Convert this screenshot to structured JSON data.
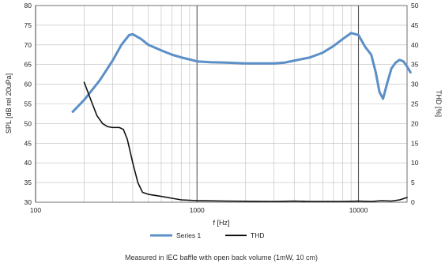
{
  "chart_data": {
    "type": "line",
    "x_scale": "log",
    "xlim": [
      100,
      20000
    ],
    "ylim_left": [
      30,
      80
    ],
    "ylim_right": [
      0,
      50
    ],
    "xlabel": "f [Hz]",
    "ylabel_left": "SPL [dB rel 20uPa]",
    "ylabel_right": "THD [%]",
    "x_ticks": [
      {
        "value": 100,
        "label": "100"
      },
      {
        "value": 1000,
        "label": "1000"
      },
      {
        "value": 10000,
        "label": "10000"
      }
    ],
    "y_ticks_left": [
      "30",
      "35",
      "40",
      "45",
      "50",
      "55",
      "60",
      "65",
      "70",
      "75",
      "80"
    ],
    "y_ticks_right": [
      "0",
      "5",
      "10",
      "15",
      "20",
      "25",
      "30",
      "35",
      "40",
      "45",
      "50"
    ],
    "grid": true,
    "legend_position": "bottom-center",
    "caption": "Measured in IEC baffle with open back volume (1mW, 10 cm)",
    "series": [
      {
        "name": "Series 1",
        "axis": "left",
        "color": "#5b8fc7",
        "points": [
          [
            170,
            53
          ],
          [
            200,
            56
          ],
          [
            250,
            61
          ],
          [
            300,
            66
          ],
          [
            340,
            70
          ],
          [
            380,
            72.5
          ],
          [
            400,
            72.7
          ],
          [
            450,
            71.5
          ],
          [
            500,
            70
          ],
          [
            600,
            68.6
          ],
          [
            700,
            67.5
          ],
          [
            800,
            66.8
          ],
          [
            900,
            66.3
          ],
          [
            1000,
            65.8
          ],
          [
            1200,
            65.6
          ],
          [
            1500,
            65.5
          ],
          [
            2000,
            65.3
          ],
          [
            2500,
            65.3
          ],
          [
            3000,
            65.3
          ],
          [
            3500,
            65.5
          ],
          [
            4000,
            66
          ],
          [
            5000,
            66.8
          ],
          [
            6000,
            68
          ],
          [
            7000,
            69.7
          ],
          [
            8000,
            71.5
          ],
          [
            9000,
            73
          ],
          [
            10000,
            72.5
          ],
          [
            11000,
            69.5
          ],
          [
            12000,
            67.5
          ],
          [
            12800,
            63
          ],
          [
            13500,
            58
          ],
          [
            14200,
            56.3
          ],
          [
            15000,
            60
          ],
          [
            16000,
            64
          ],
          [
            17000,
            65.5
          ],
          [
            18000,
            66.2
          ],
          [
            19000,
            65.8
          ],
          [
            20000,
            64.5
          ],
          [
            21000,
            63
          ]
        ]
      },
      {
        "name": "THD",
        "axis": "right",
        "color": "#111111",
        "points": [
          [
            200,
            30.5
          ],
          [
            220,
            26
          ],
          [
            240,
            22
          ],
          [
            260,
            20
          ],
          [
            280,
            19.2
          ],
          [
            300,
            19
          ],
          [
            330,
            19
          ],
          [
            350,
            18.5
          ],
          [
            370,
            16
          ],
          [
            400,
            10
          ],
          [
            430,
            5
          ],
          [
            460,
            2.5
          ],
          [
            500,
            2
          ],
          [
            600,
            1.5
          ],
          [
            700,
            1
          ],
          [
            800,
            0.6
          ],
          [
            1000,
            0.4
          ],
          [
            1500,
            0.3
          ],
          [
            3000,
            0.2
          ],
          [
            4000,
            0.3
          ],
          [
            5000,
            0.2
          ],
          [
            8000,
            0.2
          ],
          [
            10000,
            0.3
          ],
          [
            12000,
            0.2
          ],
          [
            14000,
            0.4
          ],
          [
            16000,
            0.3
          ],
          [
            18000,
            0.6
          ],
          [
            20000,
            1.2
          ]
        ]
      }
    ]
  }
}
